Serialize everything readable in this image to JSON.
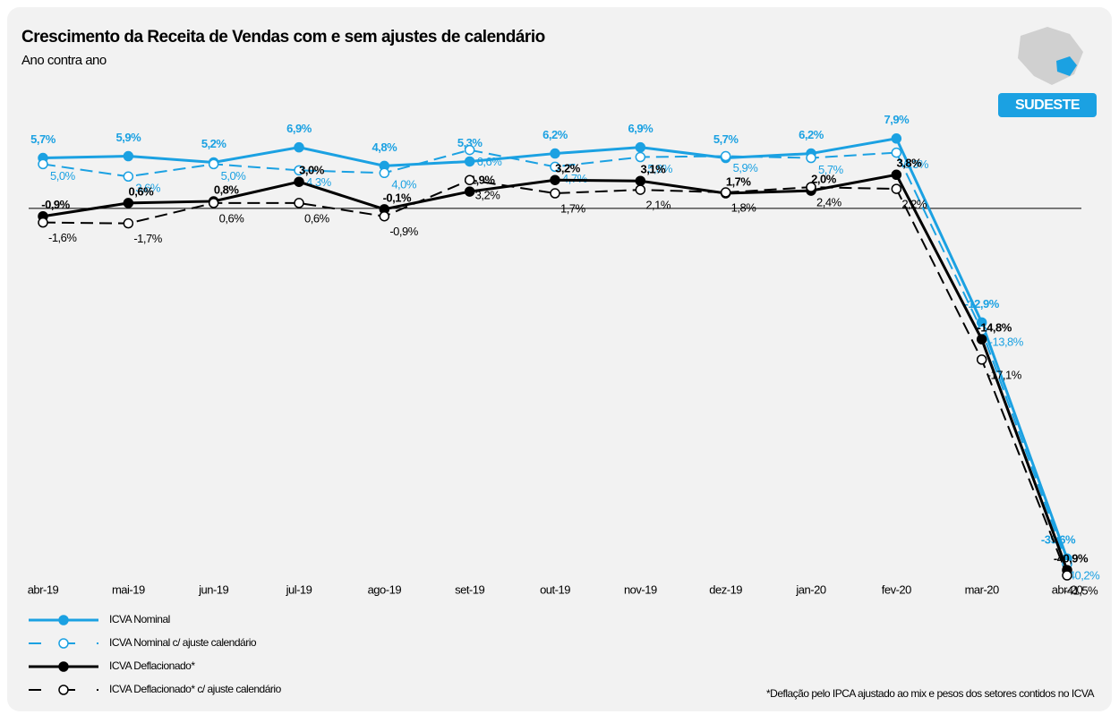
{
  "chart_data": {
    "type": "line",
    "title": "Crescimento da Receita de Vendas com e sem ajustes de calendário",
    "subtitle": "Ano contra ano",
    "region": "SUDESTE",
    "footnote": "*Deflação pelo IPCA ajustado ao mix e pesos dos setores contidos no ICVA",
    "categories": [
      "abr-19",
      "mai-19",
      "jun-19",
      "jul-19",
      "ago-19",
      "set-19",
      "out-19",
      "nov-19",
      "dez-19",
      "jan-20",
      "fev-20",
      "mar-20",
      "abr-20"
    ],
    "ylim": [
      -42,
      10
    ],
    "zero_line": true,
    "series": [
      {
        "name": "ICVA Nominal",
        "color": "#1ba1e2",
        "dashed": false,
        "filled": true,
        "bold": true,
        "values": [
          5.7,
          5.9,
          5.2,
          6.9,
          4.8,
          5.3,
          6.2,
          6.9,
          5.7,
          6.2,
          7.9,
          -12.9,
          -39.6
        ],
        "value_labels": [
          "5,7%",
          "5,9%",
          "5,2%",
          "6,9%",
          "4,8%",
          "5,3%",
          "6,2%",
          "6,9%",
          "5,7%",
          "6,2%",
          "7,9%",
          "-12,9%",
          "-39,6%"
        ]
      },
      {
        "name": "ICVA Nominal c/ ajuste calendário",
        "color": "#1ba1e2",
        "dashed": true,
        "filled": false,
        "bold": false,
        "values": [
          5.0,
          3.6,
          5.0,
          4.3,
          4.0,
          6.6,
          4.7,
          5.8,
          5.9,
          5.7,
          6.3,
          -13.8,
          -40.2
        ],
        "value_labels": [
          "5,0%",
          "3,6%",
          "5,0%",
          "4,3%",
          "4,0%",
          "6,6%",
          "4,7%",
          "5,8%",
          "5,9%",
          "5,7%",
          "6,3%",
          "-13,8%",
          "-40,2%"
        ]
      },
      {
        "name": "ICVA Deflacionado*",
        "color": "#000000",
        "dashed": false,
        "filled": true,
        "bold": true,
        "values": [
          -0.9,
          0.6,
          0.8,
          3.0,
          -0.1,
          1.9,
          3.2,
          3.1,
          1.7,
          2.0,
          3.8,
          -14.8,
          -40.9
        ],
        "value_labels": [
          "-0,9%",
          "0,6%",
          "0,8%",
          "3,0%",
          "-0,1%",
          "1,9%",
          "3,2%",
          "3,1%",
          "1,7%",
          "2,0%",
          "3,8%",
          "-14,8%",
          "-40,9%"
        ]
      },
      {
        "name": "ICVA Deflacionado*  c/ ajuste calendário",
        "color": "#000000",
        "dashed": true,
        "filled": false,
        "bold": false,
        "values": [
          -1.6,
          -1.7,
          0.6,
          0.6,
          -0.9,
          3.2,
          1.7,
          2.1,
          1.8,
          2.4,
          2.2,
          -17.1,
          -41.5
        ],
        "value_labels": [
          "-1,6%",
          "-1,7%",
          "0,6%",
          "0,6%",
          "-0,9%",
          "3,2%",
          "1,7%",
          "2,1%",
          "1,8%",
          "2,4%",
          "2,2%",
          "-17,1%",
          "-41,5%"
        ]
      }
    ]
  }
}
